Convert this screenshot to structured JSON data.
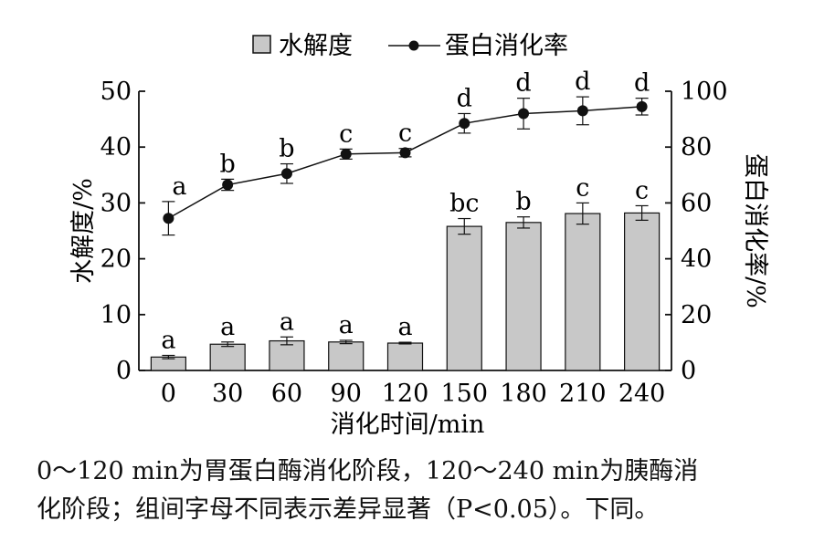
{
  "chart_data": {
    "type": "bar+line",
    "title": "",
    "xlabel": "消化时间/min",
    "ylabel_left": "水解度/%",
    "ylabel_right": "蛋白消化率/%",
    "ylim_left": [
      0,
      50
    ],
    "ylim_right": [
      0,
      100
    ],
    "yticks_left": [
      "0",
      "10",
      "20",
      "30",
      "40",
      "50"
    ],
    "yticks_right": [
      "0",
      "20",
      "40",
      "60",
      "80",
      "100"
    ],
    "categories": [
      "0",
      "30",
      "60",
      "90",
      "120",
      "150",
      "180",
      "210",
      "240"
    ],
    "legend_position": "top-center",
    "grid": false,
    "series": [
      {
        "name": "水解度",
        "kind": "bar",
        "axis": "left",
        "color": "#c8c8c8",
        "values": [
          2.4,
          4.7,
          5.3,
          5.1,
          4.9,
          25.8,
          26.5,
          28.1,
          28.2
        ],
        "errors": [
          0.3,
          0.4,
          0.7,
          0.3,
          0.15,
          1.4,
          1.0,
          1.9,
          1.3
        ],
        "labels": [
          "a",
          "a",
          "a",
          "a",
          "a",
          "bc",
          "b",
          "c",
          "c"
        ]
      },
      {
        "name": "蛋白消化率",
        "kind": "line",
        "axis": "right",
        "color": "#111111",
        "values": [
          54.5,
          66.5,
          70.5,
          77.5,
          78.0,
          88.5,
          92.0,
          93.0,
          94.5
        ],
        "errors": [
          6.0,
          2.0,
          3.5,
          1.8,
          1.5,
          3.5,
          5.5,
          5.0,
          3.0
        ],
        "labels": [
          "a",
          "b",
          "b",
          "c",
          "c",
          "d",
          "d",
          "d",
          "d"
        ]
      }
    ]
  },
  "caption": {
    "line1": "0～120 min为胃蛋白酶消化阶段，120～240 min为胰酶消",
    "line2": "化阶段；组间字母不同表示差异显著（P<0.05）。下同。"
  }
}
